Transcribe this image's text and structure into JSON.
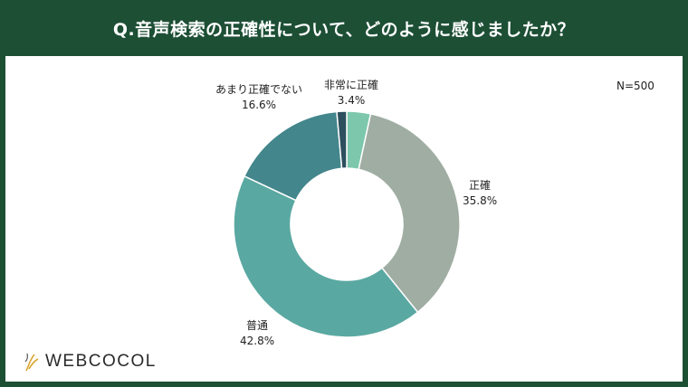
{
  "header": {
    "title": "Q.音声検索の正確性について、どのように感じましたか？"
  },
  "chart_data": {
    "type": "donut",
    "sample": "N=500",
    "slices": [
      {
        "label": "非常に正確",
        "value": 3.4,
        "pct": "3.4%",
        "color": "#7dc8ad"
      },
      {
        "label": "正確",
        "value": 35.8,
        "pct": "35.8%",
        "color": "#9fada3"
      },
      {
        "label": "普通",
        "value": 42.8,
        "pct": "42.8%",
        "color": "#5aa8a2"
      },
      {
        "label": "あまり正確でない",
        "value": 16.6,
        "pct": "16.6%",
        "color": "#43868c"
      },
      {
        "label": "",
        "value": 1.4,
        "pct": "",
        "color": "#2d4f5e"
      }
    ]
  },
  "logo": {
    "text": "WEBCOCOL"
  }
}
